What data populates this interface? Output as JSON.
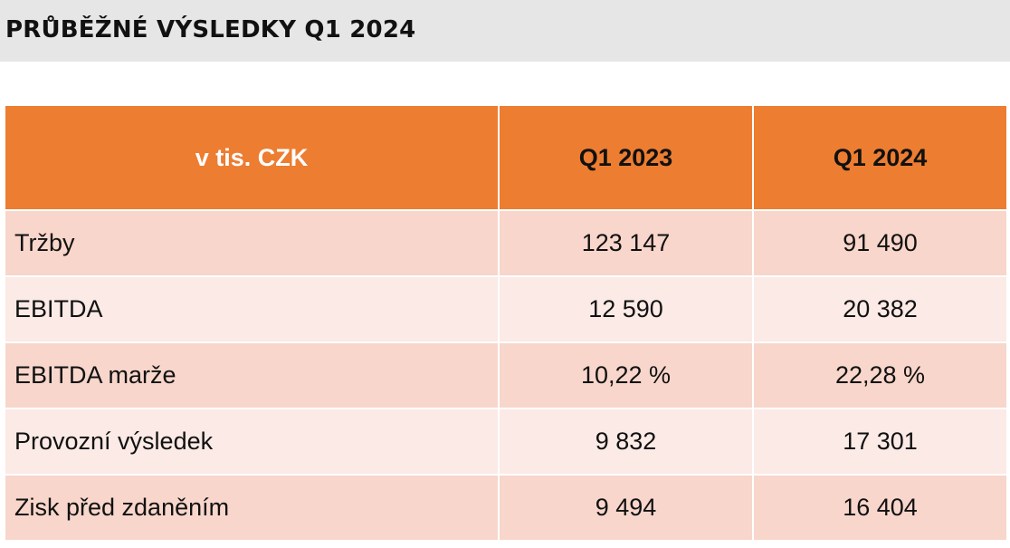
{
  "title": "PRŮBĚŽNÉ VÝSLEDKY Q1 2024",
  "table": {
    "headers": [
      "v tis. CZK",
      "Q1 2023",
      "Q1 2024"
    ],
    "rows": [
      {
        "label": "Tržby",
        "q1_2023": "123 147",
        "q1_2024": "91 490"
      },
      {
        "label": "EBITDA",
        "q1_2023": "12 590",
        "q1_2024": "20 382"
      },
      {
        "label": "EBITDA marže",
        "q1_2023": "10,22 %",
        "q1_2024": "22,28 %"
      },
      {
        "label": "Provozní výsledek",
        "q1_2023": "9 832",
        "q1_2024": "17 301"
      },
      {
        "label": "Zisk před zdaněním",
        "q1_2023": "9 494",
        "q1_2024": "16 404"
      }
    ]
  },
  "colors": {
    "header_bg": "#ed7d31",
    "row_dark": "#f8d6cb",
    "row_light": "#fbeae5",
    "title_bar": "#e6e6e6"
  }
}
